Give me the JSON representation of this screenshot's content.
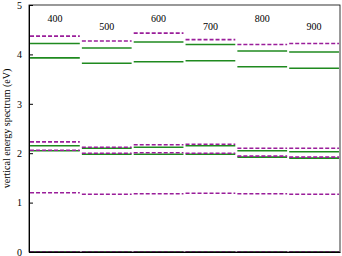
{
  "chart_data": {
    "type": "levels",
    "y_label": "vertical energy spectrum (eV)",
    "categories": [
      "400",
      "500",
      "600",
      "700",
      "800",
      "900"
    ],
    "ylim": [
      0,
      5
    ],
    "yticks": [
      0,
      1,
      2,
      3,
      4,
      5
    ],
    "tick_labels": "y",
    "series": [
      {
        "color": "#1f8a1f",
        "line_style": "solid",
        "values": [
          [
            0,
            2.05,
            2.15,
            3.93,
            4.22
          ],
          [
            0,
            1.98,
            2.1,
            3.82,
            4.13
          ],
          [
            0,
            1.98,
            2.12,
            3.85,
            4.25
          ],
          [
            0,
            1.98,
            2.15,
            3.87,
            4.2
          ],
          [
            0,
            1.92,
            2.05,
            3.75,
            4.07
          ],
          [
            0,
            1.9,
            2.03,
            3.72,
            4.05
          ]
        ]
      },
      {
        "color": "#9a1e9a",
        "line_style": "dashed",
        "values": [
          [
            0,
            1.2,
            2.06,
            2.23,
            4.37
          ],
          [
            0,
            1.17,
            2.0,
            2.12,
            4.27
          ],
          [
            0,
            1.18,
            2.01,
            2.17,
            4.43
          ],
          [
            0,
            1.19,
            2.0,
            2.18,
            4.3
          ],
          [
            0,
            1.18,
            1.94,
            2.1,
            4.2
          ],
          [
            0,
            1.17,
            1.92,
            2.1,
            4.22
          ]
        ]
      }
    ]
  }
}
